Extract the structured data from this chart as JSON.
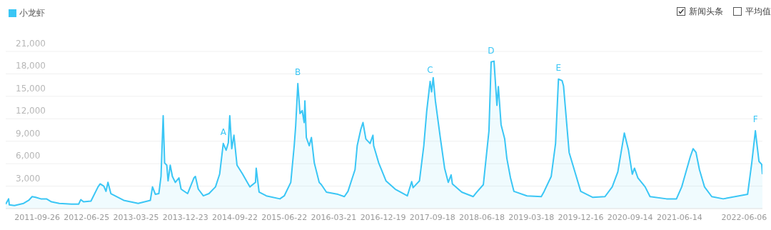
{
  "chart_data": {
    "type": "area",
    "legend": "top left",
    "grid": "y",
    "marker": "none",
    "line_style": "solid",
    "ylim": [
      0,
      21000
    ],
    "yticks": [
      {
        "value": 0,
        "label": null
      },
      {
        "value": 3000,
        "label": "3,000"
      },
      {
        "value": 6000,
        "label": "6,000"
      },
      {
        "value": 9000,
        "label": "9,000"
      },
      {
        "value": 12000,
        "label": "12,000"
      },
      {
        "value": 15000,
        "label": "15,000"
      },
      {
        "value": 18000,
        "label": "18,000"
      },
      {
        "value": 21000,
        "label": "21,000"
      }
    ],
    "xlim": [
      "2011-04-05",
      "2022-09-15"
    ],
    "xticks": [
      "2011-09-26",
      "2012-06-25",
      "2013-03-25",
      "2013-12-23",
      "2014-09-22",
      "2015-06-22",
      "2016-03-21",
      "2016-12-19",
      "2017-09-18",
      "2018-06-18",
      "2019-03-18",
      "2019-12-16",
      "2020-09-14",
      "2021-06-14",
      "2022-06-06"
    ],
    "x": [
      "2011-04-05",
      "2011-04-21",
      "2011-04-25",
      "2011-05-23",
      "2011-07-13",
      "2011-08-10",
      "2011-08-29",
      "2011-09-18",
      "2011-10-16",
      "2011-11-16",
      "2011-12-14",
      "2012-01-26",
      "2012-04-02",
      "2012-05-12",
      "2012-05-24",
      "2012-06-08",
      "2012-07-19",
      "2012-08-27",
      "2012-09-08",
      "2012-09-28",
      "2012-10-10",
      "2012-10-21",
      "2012-11-06",
      "2013-01-16",
      "2013-04-06",
      "2013-06-12",
      "2013-06-24",
      "2013-07-10",
      "2013-07-29",
      "2013-08-10",
      "2013-08-22",
      "2013-08-30",
      "2013-09-11",
      "2013-09-18",
      "2013-09-30",
      "2013-10-12",
      "2013-10-28",
      "2013-11-17",
      "2013-11-29",
      "2014-01-04",
      "2014-02-08",
      "2014-02-16",
      "2014-03-04",
      "2014-04-01",
      "2014-05-02",
      "2014-06-07",
      "2014-06-30",
      "2014-07-20",
      "2014-08-05",
      "2014-08-17",
      "2014-08-25",
      "2014-09-05",
      "2014-09-17",
      "2014-10-04",
      "2014-11-04",
      "2014-12-14",
      "2015-01-14",
      "2015-01-18",
      "2015-02-03",
      "2015-03-15",
      "2015-05-29",
      "2015-06-22",
      "2015-07-28",
      "2015-08-16",
      "2015-08-24",
      "2015-09-05",
      "2015-09-17",
      "2015-09-29",
      "2015-10-10",
      "2015-10-14",
      "2015-10-22",
      "2015-11-07",
      "2015-11-19",
      "2015-12-05",
      "2016-01-01",
      "2016-01-13",
      "2016-02-10",
      "2016-04-14",
      "2016-05-19",
      "2016-06-08",
      "2016-07-17",
      "2016-07-29",
      "2016-08-18",
      "2016-08-30",
      "2016-09-15",
      "2016-10-08",
      "2016-10-24",
      "2016-10-28",
      "2016-11-25",
      "2017-01-04",
      "2017-02-24",
      "2017-05-02",
      "2017-05-26",
      "2017-06-03",
      "2017-07-08",
      "2017-08-01",
      "2017-08-17",
      "2017-09-05",
      "2017-09-13",
      "2017-09-22",
      "2017-10-04",
      "2017-10-31",
      "2017-11-24",
      "2017-12-14",
      "2017-12-30",
      "2018-01-06",
      "2018-02-27",
      "2018-05-01",
      "2018-05-21",
      "2018-06-26",
      "2018-07-27",
      "2018-08-08",
      "2018-08-24",
      "2018-09-09",
      "2018-09-17",
      "2018-10-02",
      "2018-10-22",
      "2018-11-03",
      "2018-11-23",
      "2018-12-12",
      "2019-02-22",
      "2019-05-12",
      "2019-05-28",
      "2019-07-06",
      "2019-07-30",
      "2019-08-15",
      "2019-09-04",
      "2019-09-12",
      "2019-10-13",
      "2019-12-16",
      "2020-02-21",
      "2020-04-28",
      "2020-06-07",
      "2020-07-08",
      "2020-08-13",
      "2020-09-05",
      "2020-09-26",
      "2020-10-08",
      "2020-10-27",
      "2020-12-06",
      "2021-01-02",
      "2021-04-03",
      "2021-05-28",
      "2021-06-26",
      "2021-08-12",
      "2021-08-28",
      "2021-09-13",
      "2021-10-02",
      "2021-10-30",
      "2021-12-09",
      "2022-02-10",
      "2022-06-25",
      "2022-07-18",
      "2022-08-07",
      "2022-08-27",
      "2022-09-11",
      "2022-09-15"
    ],
    "series": [
      {
        "name": "小龙虾",
        "color": "#3ac6f5",
        "values": [
          600,
          1300,
          500,
          400,
          700,
          1100,
          1600,
          1500,
          1300,
          1300,
          900,
          700,
          600,
          600,
          1200,
          900,
          1000,
          2900,
          3300,
          3000,
          2300,
          3500,
          2000,
          1100,
          700,
          1100,
          2900,
          1900,
          2000,
          4300,
          12400,
          6100,
          5800,
          3700,
          5800,
          4300,
          3500,
          4100,
          2600,
          2000,
          4100,
          4300,
          2600,
          1700,
          2000,
          2900,
          4600,
          8700,
          7800,
          8800,
          12400,
          8000,
          9800,
          5800,
          4600,
          2900,
          3500,
          5400,
          2200,
          1700,
          1300,
          1700,
          3500,
          8400,
          11000,
          16700,
          12700,
          13100,
          11500,
          14400,
          9500,
          8400,
          9500,
          6100,
          3500,
          3200,
          2200,
          1900,
          1600,
          2300,
          5200,
          8400,
          10600,
          11500,
          9300,
          8700,
          9800,
          8400,
          6100,
          3700,
          2600,
          1700,
          3600,
          2800,
          3700,
          8400,
          13000,
          17000,
          15600,
          17500,
          14400,
          9500,
          5400,
          3500,
          4500,
          3300,
          2200,
          1600,
          2200,
          3200,
          10400,
          19600,
          19700,
          13800,
          16300,
          11200,
          9300,
          6700,
          4100,
          2300,
          1700,
          1600,
          2300,
          4300,
          8700,
          17300,
          17100,
          16400,
          7500,
          2300,
          1500,
          1600,
          2900,
          4900,
          10100,
          7800,
          4600,
          5400,
          4100,
          2900,
          1600,
          1300,
          1300,
          2900,
          6900,
          8000,
          7500,
          5200,
          2900,
          1600,
          1300,
          1900,
          6100,
          10400,
          6300,
          5900,
          4600
        ]
      }
    ],
    "annotations": [
      "新闻头条",
      "平均值",
      {
        "text": "A",
        "x": "2014-07-20",
        "y": 8700
      },
      {
        "text": "B",
        "x": "2015-09-05",
        "y": 16700
      },
      {
        "text": "C",
        "x": "2017-09-05",
        "y": 17000
      },
      {
        "text": "D",
        "x": "2018-08-08",
        "y": 19600
      },
      {
        "text": "E",
        "x": "2019-08-15",
        "y": 17300
      },
      {
        "text": "F",
        "x": "2022-08-07",
        "y": 10400
      }
    ]
  }
}
